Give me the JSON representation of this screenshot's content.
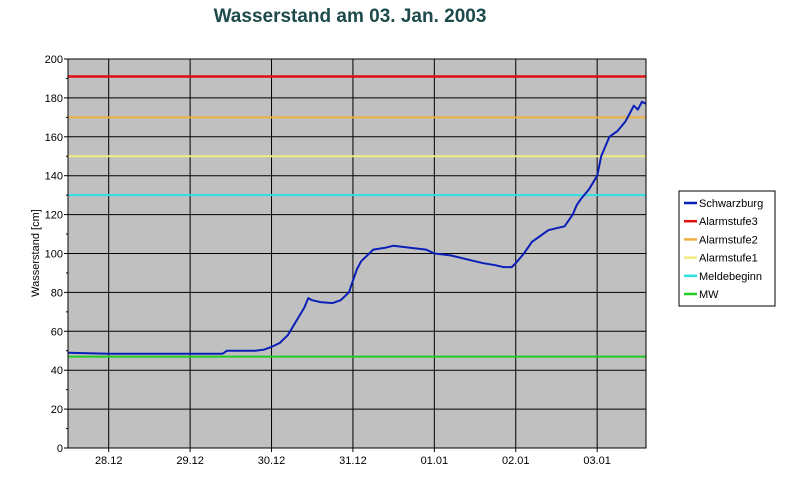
{
  "chart_data": {
    "type": "line",
    "title": "Wasserstand am 03. Jan. 2003",
    "ylabel": "Wasserstand [cm]",
    "xlabel": "",
    "ylim": [
      0,
      200
    ],
    "yticks": [
      0,
      20,
      40,
      60,
      80,
      100,
      120,
      140,
      160,
      180,
      200
    ],
    "xlim": [
      27.5,
      34.6
    ],
    "xticks": [
      {
        "x": 28,
        "label": "28.12"
      },
      {
        "x": 29,
        "label": "29.12"
      },
      {
        "x": 30,
        "label": "30.12"
      },
      {
        "x": 31,
        "label": "31.12"
      },
      {
        "x": 32,
        "label": "01.01"
      },
      {
        "x": 33,
        "label": "02.01"
      },
      {
        "x": 34,
        "label": "03.01"
      }
    ],
    "grid": true,
    "background": "#c0c0c0",
    "legend_position": "right",
    "series": [
      {
        "name": "Schwarzburg",
        "color": "#0a1fb8",
        "points": [
          [
            27.5,
            49
          ],
          [
            28.0,
            48.5
          ],
          [
            28.5,
            48.5
          ],
          [
            29.0,
            48.5
          ],
          [
            29.4,
            48.5
          ],
          [
            29.45,
            50
          ],
          [
            29.6,
            50
          ],
          [
            29.8,
            50
          ],
          [
            29.9,
            50.5
          ],
          [
            30.0,
            52
          ],
          [
            30.1,
            54
          ],
          [
            30.2,
            58
          ],
          [
            30.3,
            65
          ],
          [
            30.4,
            72
          ],
          [
            30.45,
            77
          ],
          [
            30.5,
            76
          ],
          [
            30.6,
            75
          ],
          [
            30.75,
            74.5
          ],
          [
            30.85,
            76
          ],
          [
            30.95,
            80
          ],
          [
            31.0,
            86
          ],
          [
            31.05,
            92
          ],
          [
            31.1,
            96
          ],
          [
            31.2,
            100
          ],
          [
            31.25,
            102
          ],
          [
            31.4,
            103
          ],
          [
            31.5,
            104
          ],
          [
            31.7,
            103
          ],
          [
            31.9,
            102
          ],
          [
            32.0,
            100
          ],
          [
            32.2,
            99
          ],
          [
            32.4,
            97
          ],
          [
            32.6,
            95
          ],
          [
            32.75,
            94
          ],
          [
            32.85,
            93
          ],
          [
            32.95,
            93
          ],
          [
            33.0,
            95
          ],
          [
            33.1,
            100
          ],
          [
            33.2,
            106
          ],
          [
            33.3,
            109
          ],
          [
            33.4,
            112
          ],
          [
            33.5,
            113
          ],
          [
            33.6,
            114
          ],
          [
            33.7,
            120
          ],
          [
            33.75,
            125
          ],
          [
            33.8,
            128
          ],
          [
            33.9,
            133
          ],
          [
            34.0,
            140
          ],
          [
            34.05,
            150
          ],
          [
            34.1,
            155
          ],
          [
            34.15,
            160
          ],
          [
            34.25,
            163
          ],
          [
            34.35,
            168
          ],
          [
            34.4,
            172
          ],
          [
            34.45,
            176
          ],
          [
            34.5,
            174
          ],
          [
            34.55,
            178
          ],
          [
            34.6,
            177
          ]
        ]
      },
      {
        "name": "Alarmstufe3",
        "color": "#e01010",
        "value": 191
      },
      {
        "name": "Alarmstufe2",
        "color": "#f0b040",
        "value": 170
      },
      {
        "name": "Alarmstufe1",
        "color": "#f0ec80",
        "value": 150
      },
      {
        "name": "Meldebeginn",
        "color": "#30e0e0",
        "value": 130
      },
      {
        "name": "MW",
        "color": "#22cc22",
        "value": 47
      }
    ]
  }
}
